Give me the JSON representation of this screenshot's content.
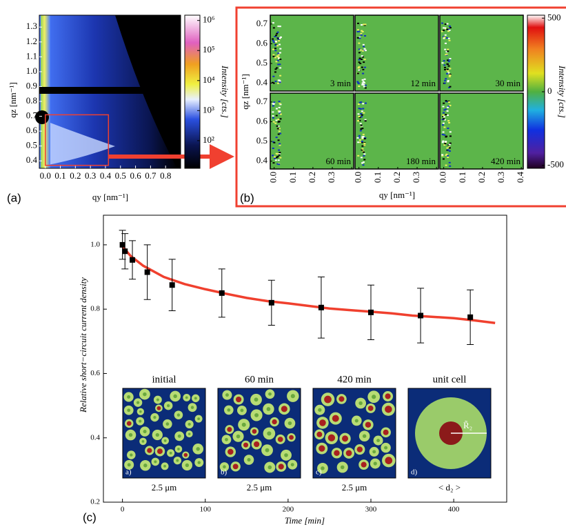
{
  "chart_data": [
    {
      "type": "heatmap",
      "panel_label": "(a)",
      "xlabel": "qy [nm⁻¹]",
      "ylabel": "qz [nm⁻¹]",
      "colorbar_label": "Intensity [cts.]",
      "xlim": [
        -0.04,
        0.9
      ],
      "ylim": [
        0.35,
        1.38
      ],
      "xticks": [
        {
          "value": 0,
          "label": "0.0"
        },
        0.1,
        0.2,
        0.3,
        0.4,
        0.5,
        0.6,
        0.7,
        0.8
      ],
      "yticks": [
        0.4,
        0.5,
        0.6,
        0.7,
        0.8,
        0.9,
        {
          "value": 1,
          "label": "1.0"
        },
        1.1,
        1.2,
        1.3
      ],
      "color_scale": "log",
      "clim": [
        12,
        1500000
      ],
      "cticks": [
        {
          "value": 100,
          "label": "10²"
        },
        {
          "value": 1000,
          "label": "10³"
        },
        {
          "value": 10000,
          "label": "10⁴"
        },
        {
          "value": 100000,
          "label": "10⁵"
        },
        {
          "value": 1000000,
          "label": "10⁶"
        }
      ]
    },
    {
      "type": "heatmap-grid",
      "panel_label": "(b)",
      "xlabel": "qy [nm⁻¹]",
      "ylabel": "qz [nm⁻¹]",
      "colorbar_label": "Intensity [cts.]",
      "panels": [
        "3 min",
        "12 min",
        "30 min",
        "60 min",
        "180 min",
        "420 min"
      ],
      "xlim": [
        -0.02,
        0.41
      ],
      "ylim": [
        0.36,
        0.745
      ],
      "xticks": [
        {
          "value": 0,
          "label": "0.0"
        },
        0.1,
        0.2,
        0.3,
        0.4
      ],
      "yticks": [
        0.4,
        0.5,
        0.6,
        0.7
      ],
      "clim": [
        -520,
        520
      ],
      "cticks": [
        500,
        0,
        -500
      ]
    },
    {
      "type": "scatter-line",
      "panel_label": "(c)",
      "xlabel": "Time [min]",
      "ylabel": "Relative short−circuit current density",
      "xlim": [
        -23,
        464
      ],
      "ylim": [
        0.2,
        1.092
      ],
      "xticks": [
        0,
        100,
        200,
        300,
        400
      ],
      "yticks": [
        0.2,
        0.4,
        0.6,
        0.8,
        {
          "value": 1,
          "label": "1.0"
        }
      ],
      "line": {
        "color": "#f0402e",
        "x": [
          0,
          10,
          25,
          50,
          75,
          100,
          125,
          150,
          175,
          200,
          225,
          250,
          275,
          300,
          325,
          350,
          375,
          400,
          425,
          450
        ],
        "values": [
          0.995,
          0.965,
          0.935,
          0.9,
          0.878,
          0.862,
          0.848,
          0.835,
          0.825,
          0.818,
          0.81,
          0.802,
          0.797,
          0.792,
          0.787,
          0.78,
          0.776,
          0.772,
          0.765,
          0.757
        ]
      },
      "markers": {
        "color": "#000000",
        "x": [
          0,
          3,
          12,
          30,
          60,
          120,
          180,
          240,
          300,
          360,
          420
        ],
        "values": [
          1.0,
          0.98,
          0.953,
          0.915,
          0.875,
          0.85,
          0.82,
          0.805,
          0.79,
          0.78,
          0.775
        ],
        "errors": [
          0.045,
          0.055,
          0.06,
          0.085,
          0.08,
          0.075,
          0.07,
          0.095,
          0.085,
          0.085,
          0.085
        ]
      },
      "insets": [
        {
          "title": "initial",
          "tag": "a)",
          "caption": "2.5 μm"
        },
        {
          "title": "60 min",
          "tag": "b)",
          "caption": "2.5 μm"
        },
        {
          "title": "420 min",
          "tag": "c)",
          "caption": "2.5 μm"
        },
        {
          "title": "unit cell",
          "tag": "d)",
          "caption": "< d₂ >",
          "radius_label": "R̃₂"
        }
      ]
    }
  ]
}
